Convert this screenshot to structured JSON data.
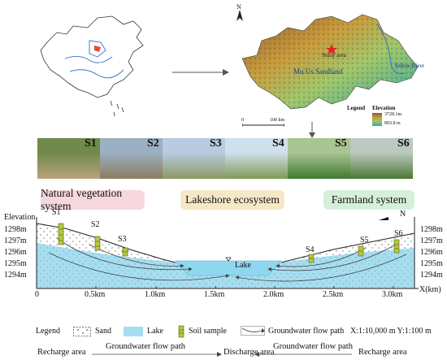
{
  "map": {
    "study_area_label": "Study area",
    "sandland_label": "Mu Us Sandland",
    "river_label": "Yellow River",
    "north_label": "N",
    "scale_label": "100 km",
    "scale_zero": "0",
    "legend_title": "Legend",
    "elevation_title": "Elevation",
    "elevation_high": "3728.1m",
    "elevation_low": "893.8 m"
  },
  "photos": [
    {
      "label": "S1",
      "color_top": "#6f8a4a",
      "color_bottom": "#b9a27c"
    },
    {
      "label": "S2",
      "color_top": "#9bb0c2",
      "color_bottom": "#8c7c5e"
    },
    {
      "label": "S3",
      "color_top": "#b8cbe0",
      "color_bottom": "#8b9a62"
    },
    {
      "label": "S4",
      "color_top": "#cfe0ec",
      "color_bottom": "#7e9b54"
    },
    {
      "label": "S5",
      "color_top": "#aac493",
      "color_bottom": "#3f7a2e"
    },
    {
      "label": "S6",
      "color_top": "#bcc9c0",
      "color_bottom": "#4b7a34"
    }
  ],
  "systems": [
    {
      "label": "Natural vegetation system",
      "color": "#f6d7dd"
    },
    {
      "label": "Lakeshore ecosystem",
      "color": "#f6e7c6"
    },
    {
      "label": "Farmland system",
      "color": "#d6efd9"
    }
  ],
  "section": {
    "elevation_label": "Elevation",
    "y_ticks_left": [
      "1298m",
      "1297m",
      "1296m",
      "1295m",
      "1294m"
    ],
    "y_ticks_right": [
      "1298m",
      "1297m",
      "1296m",
      "1295m",
      "1294m"
    ],
    "x_ticks": [
      "0",
      "0.5km",
      "1.0km",
      "1.5km",
      "2.0km",
      "2.5km",
      "3.0km"
    ],
    "x_axis_label": "X(km)",
    "north_label": "N",
    "lake_label": "Lake",
    "samples": [
      "S1",
      "S2",
      "S3",
      "S4",
      "S5",
      "S6"
    ]
  },
  "legend": {
    "title": "Legend",
    "sand": "Sand",
    "lake": "Lake",
    "soil": "Soil sample",
    "flow": "Groundwater flow path",
    "scale": "X:1:10,000 m  Y:1:100 m"
  },
  "flow_bar": {
    "left": "Recharge area",
    "left_path": "Groundwater flow path",
    "middle": "Discharge area",
    "right_path": "Groundwater flow path",
    "right": "Recharge area"
  },
  "colors": {
    "water": "#a6def0",
    "arrow": "#444444"
  }
}
